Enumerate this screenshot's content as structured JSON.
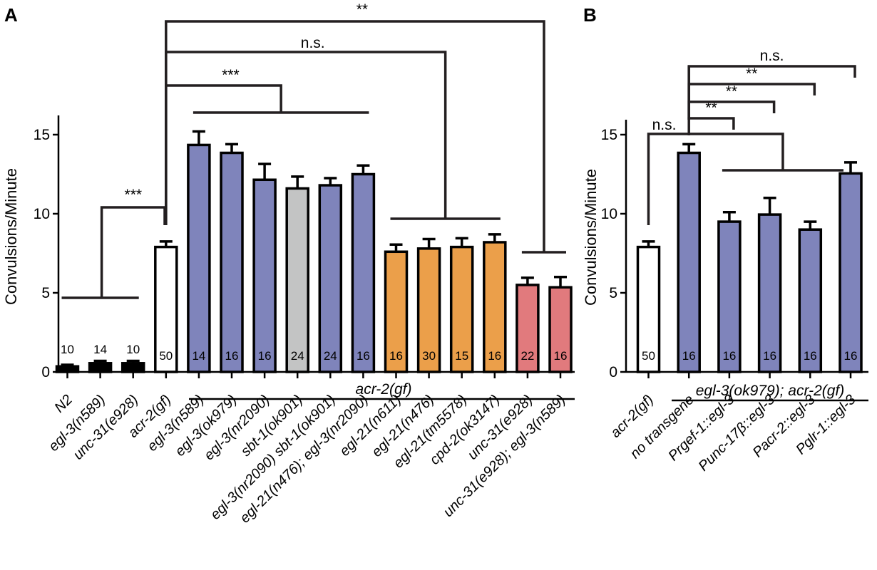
{
  "panels": {
    "a": "A",
    "b": "B"
  },
  "colors": {
    "gf_control": "#000000",
    "open": "#ffffff",
    "purple": "#7f84bb",
    "gray": "#c3c4c4",
    "orange": "#eb9f4a",
    "red": "#e17a7d"
  },
  "chart_data": [
    {
      "type": "bar",
      "panel": "A",
      "ylabel": "Convulsions/Minute",
      "ylim": [
        0,
        15
      ],
      "yticks": [
        0,
        5,
        10,
        15
      ],
      "group_label": "acr-2(gf)",
      "categories": [
        "N2",
        "egl-3(n589)",
        "unc-31(e928)",
        "acr-2(gf)",
        "egl-3(n589)",
        "egl-3(ok979)",
        "egl-3(nr2090)",
        "sbt-1(ok901)",
        "egl-3(nr2090) sbt-1(ok901)",
        "egl-21(n476); egl-3(nr2090)",
        "egl-21(n611)",
        "egl-21(n476)",
        "egl-21(tm5578)",
        "cpd-2(ok3147)",
        "unc-31(e928)",
        "unc-31(e928); egl-3(n589)"
      ],
      "values": [
        0.35,
        0.55,
        0.55,
        7.9,
        14.35,
        13.85,
        12.15,
        11.6,
        11.8,
        12.5,
        7.6,
        7.8,
        7.9,
        8.2,
        5.5,
        5.35
      ],
      "errors": [
        0.1,
        0.15,
        0.15,
        0.35,
        0.85,
        0.55,
        1.0,
        0.75,
        0.45,
        0.55,
        0.45,
        0.6,
        0.55,
        0.5,
        0.45,
        0.65
      ],
      "n": [
        "10",
        "14",
        "10",
        "50",
        "14",
        "16",
        "16",
        "24",
        "24",
        "16",
        "16",
        "30",
        "15",
        "16",
        "22",
        "16"
      ],
      "colors": [
        "#000000",
        "#000000",
        "#000000",
        "#ffffff",
        "#7f84bb",
        "#7f84bb",
        "#7f84bb",
        "#c3c4c4",
        "#7f84bb",
        "#7f84bb",
        "#eb9f4a",
        "#eb9f4a",
        "#eb9f4a",
        "#eb9f4a",
        "#e17a7d",
        "#e17a7d"
      ],
      "significance": [
        {
          "label": "***",
          "from": 3,
          "to_group": [
            0,
            2
          ]
        },
        {
          "label": "***",
          "from": 3,
          "to_group": [
            4,
            9
          ]
        },
        {
          "label": "n.s.",
          "from": 3,
          "to_group": [
            10,
            13
          ]
        },
        {
          "label": "**",
          "from": 3,
          "to_group": [
            14,
            15
          ]
        }
      ]
    },
    {
      "type": "bar",
      "panel": "B",
      "ylabel": "Convulsions/Minute",
      "ylim": [
        0,
        15
      ],
      "yticks": [
        0,
        5,
        10,
        15
      ],
      "group_label": "egl-3(ok979); acr-2(gf)",
      "categories": [
        "acr-2(gf)",
        "no transgene",
        "Prgef-1::egl-3",
        "Punc-17β::egl-3",
        "Pacr-2::egl-3",
        "Pglr-1::egl-3"
      ],
      "values": [
        7.9,
        13.85,
        9.5,
        9.95,
        9.0,
        12.55
      ],
      "errors": [
        0.35,
        0.55,
        0.6,
        1.05,
        0.5,
        0.7
      ],
      "n": [
        "50",
        "16",
        "16",
        "16",
        "16",
        "16"
      ],
      "colors": [
        "#ffffff",
        "#7f84bb",
        "#7f84bb",
        "#7f84bb",
        "#7f84bb",
        "#7f84bb"
      ],
      "significance": [
        {
          "label": "n.s.",
          "from": 0,
          "to_group": [
            2,
            5
          ]
        },
        {
          "label": "**",
          "from": 1,
          "to": 2
        },
        {
          "label": "**",
          "from": 1,
          "to": 3
        },
        {
          "label": "**",
          "from": 1,
          "to": 4
        },
        {
          "label": "n.s.",
          "from": 1,
          "to": 5
        }
      ]
    }
  ]
}
